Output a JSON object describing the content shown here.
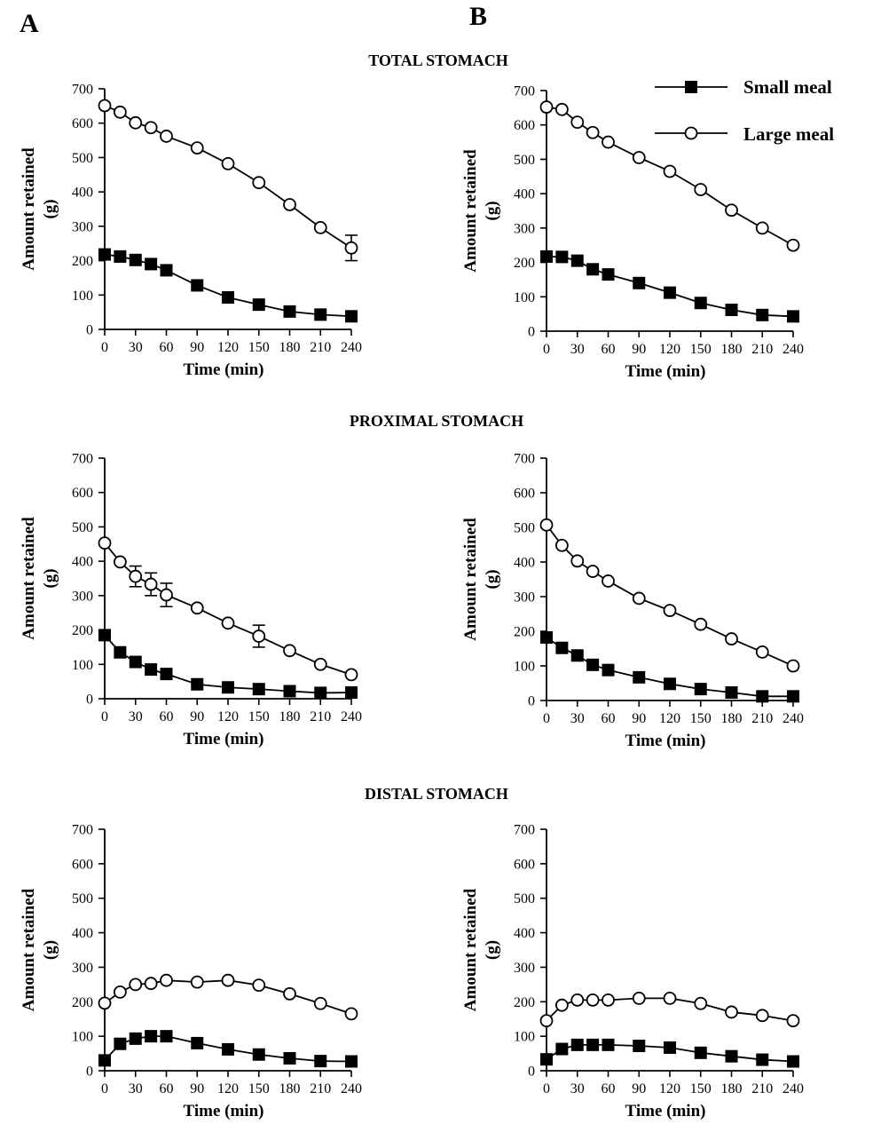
{
  "panel_labels": [
    "A",
    "B"
  ],
  "section_titles": [
    "TOTAL STOMACH",
    "PROXIMAL STOMACH",
    "DISTAL STOMACH"
  ],
  "legend": {
    "items": [
      {
        "label": "Small meal",
        "marker": "filled-square"
      },
      {
        "label": "Large meal",
        "marker": "open-circle"
      }
    ],
    "placement": "top-right"
  },
  "colors": {
    "ink": "#000000",
    "background": "#ffffff"
  },
  "chart_data": [
    {
      "type": "line",
      "panel": "A",
      "section": "TOTAL STOMACH",
      "xlabel": "Time (min)",
      "ylabel": "Amount retained (g)",
      "x": [
        0,
        15,
        30,
        45,
        60,
        90,
        120,
        150,
        180,
        210,
        240
      ],
      "xticks": [
        0,
        30,
        60,
        90,
        120,
        150,
        180,
        210,
        240
      ],
      "ylim": [
        0,
        700
      ],
      "yticks": [
        0,
        100,
        200,
        300,
        400,
        500,
        600,
        700
      ],
      "series": [
        {
          "name": "Small meal",
          "marker": "filled-square",
          "values": [
            218,
            212,
            202,
            190,
            172,
            128,
            93,
            72,
            52,
            43,
            38
          ]
        },
        {
          "name": "Large meal",
          "marker": "open-circle",
          "values": [
            651,
            632,
            601,
            587,
            562,
            528,
            482,
            427,
            363,
            296,
            237
          ],
          "error_bars": [
            {
              "x": 240,
              "low": 200,
              "high": 274
            }
          ]
        }
      ]
    },
    {
      "type": "line",
      "panel": "B",
      "section": "TOTAL STOMACH",
      "xlabel": "Time (min)",
      "ylabel": "Amount retained (g)",
      "x": [
        0,
        15,
        30,
        45,
        60,
        90,
        120,
        150,
        180,
        210,
        240
      ],
      "xticks": [
        0,
        30,
        60,
        90,
        120,
        150,
        180,
        210,
        240
      ],
      "ylim": [
        0,
        700
      ],
      "yticks": [
        0,
        100,
        200,
        300,
        400,
        500,
        600,
        700
      ],
      "series": [
        {
          "name": "Small meal",
          "marker": "filled-square",
          "values": [
            217,
            216,
            205,
            180,
            165,
            140,
            112,
            82,
            62,
            47,
            43
          ]
        },
        {
          "name": "Large meal",
          "marker": "open-circle",
          "values": [
            652,
            645,
            608,
            578,
            550,
            505,
            465,
            412,
            352,
            300,
            250
          ]
        }
      ]
    },
    {
      "type": "line",
      "panel": "A",
      "section": "PROXIMAL STOMACH",
      "xlabel": "Time (min)",
      "ylabel": "Amount retained (g)",
      "x": [
        0,
        15,
        30,
        45,
        60,
        90,
        120,
        150,
        180,
        210,
        240
      ],
      "xticks": [
        0,
        30,
        60,
        90,
        120,
        150,
        180,
        210,
        240
      ],
      "ylim": [
        0,
        700
      ],
      "yticks": [
        0,
        100,
        200,
        300,
        400,
        500,
        600,
        700
      ],
      "series": [
        {
          "name": "Small meal",
          "marker": "filled-square",
          "values": [
            185,
            135,
            107,
            85,
            72,
            42,
            33,
            28,
            22,
            17,
            18
          ]
        },
        {
          "name": "Large meal",
          "marker": "open-circle",
          "values": [
            453,
            398,
            356,
            333,
            302,
            264,
            220,
            182,
            140,
            100,
            70
          ],
          "error_bars": [
            {
              "x": 30,
              "low": 326,
              "high": 386
            },
            {
              "x": 45,
              "low": 300,
              "high": 366
            },
            {
              "x": 60,
              "low": 268,
              "high": 336
            },
            {
              "x": 150,
              "low": 150,
              "high": 214
            }
          ]
        }
      ]
    },
    {
      "type": "line",
      "panel": "B",
      "section": "PROXIMAL STOMACH",
      "xlabel": "Time (min)",
      "ylabel": "Amount retained (g)",
      "x": [
        0,
        15,
        30,
        45,
        60,
        90,
        120,
        150,
        180,
        210,
        240
      ],
      "xticks": [
        0,
        30,
        60,
        90,
        120,
        150,
        180,
        210,
        240
      ],
      "ylim": [
        0,
        700
      ],
      "yticks": [
        0,
        100,
        200,
        300,
        400,
        500,
        600,
        700
      ],
      "series": [
        {
          "name": "Small meal",
          "marker": "filled-square",
          "values": [
            182,
            152,
            130,
            103,
            88,
            67,
            48,
            33,
            23,
            12,
            12
          ]
        },
        {
          "name": "Large meal",
          "marker": "open-circle",
          "values": [
            507,
            448,
            403,
            373,
            345,
            295,
            260,
            220,
            178,
            140,
            100
          ]
        }
      ]
    },
    {
      "type": "line",
      "panel": "A",
      "section": "DISTAL STOMACH",
      "xlabel": "Time (min)",
      "ylabel": "Amount retained (g)",
      "x": [
        0,
        15,
        30,
        45,
        60,
        90,
        120,
        150,
        180,
        210,
        240
      ],
      "xticks": [
        0,
        30,
        60,
        90,
        120,
        150,
        180,
        210,
        240
      ],
      "ylim": [
        0,
        700
      ],
      "yticks": [
        0,
        100,
        200,
        300,
        400,
        500,
        600,
        700
      ],
      "series": [
        {
          "name": "Small meal",
          "marker": "filled-square",
          "values": [
            30,
            78,
            93,
            100,
            100,
            80,
            62,
            47,
            36,
            28,
            27
          ]
        },
        {
          "name": "Large meal",
          "marker": "open-circle",
          "values": [
            196,
            228,
            250,
            253,
            262,
            257,
            262,
            248,
            223,
            195,
            165
          ]
        }
      ]
    },
    {
      "type": "line",
      "panel": "B",
      "section": "DISTAL STOMACH",
      "xlabel": "Time (min)",
      "ylabel": "Amount retained (g)",
      "x": [
        0,
        15,
        30,
        45,
        60,
        90,
        120,
        150,
        180,
        210,
        240
      ],
      "xticks": [
        0,
        30,
        60,
        90,
        120,
        150,
        180,
        210,
        240
      ],
      "ylim": [
        0,
        700
      ],
      "yticks": [
        0,
        100,
        200,
        300,
        400,
        500,
        600,
        700
      ],
      "series": [
        {
          "name": "Small meal",
          "marker": "filled-square",
          "values": [
            33,
            63,
            75,
            75,
            75,
            72,
            67,
            52,
            42,
            32,
            27
          ]
        },
        {
          "name": "Large meal",
          "marker": "open-circle",
          "values": [
            145,
            190,
            205,
            205,
            205,
            210,
            210,
            195,
            170,
            160,
            145
          ]
        }
      ]
    }
  ]
}
